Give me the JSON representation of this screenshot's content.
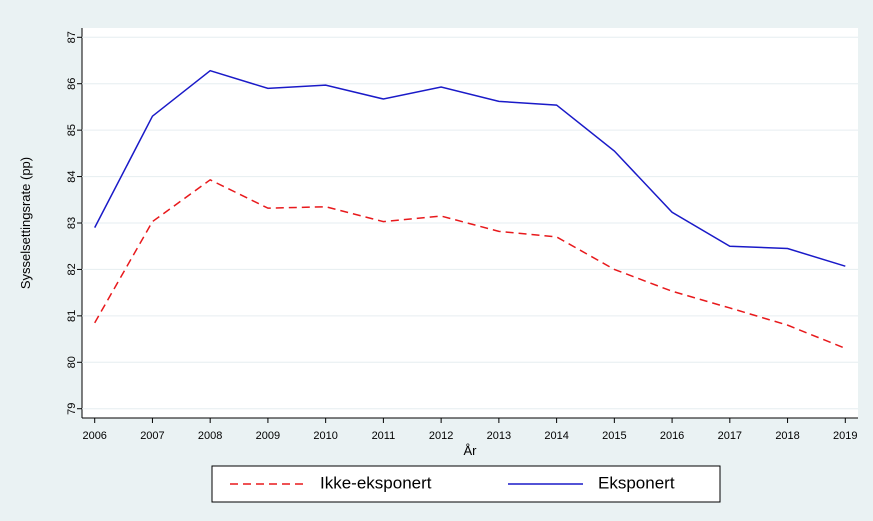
{
  "chart_data": {
    "type": "line",
    "x_label": "År",
    "y_label": "Sysselsettingsrate (pp)",
    "x": [
      2006,
      2007,
      2008,
      2009,
      2010,
      2011,
      2012,
      2013,
      2014,
      2015,
      2016,
      2017,
      2018,
      2019
    ],
    "series": [
      {
        "name": "Ikke-eksponert",
        "color": "#e8191c",
        "dashed": true,
        "values": [
          80.85,
          83.03,
          83.93,
          83.32,
          83.35,
          83.03,
          83.15,
          82.82,
          82.7,
          82.0,
          81.53,
          81.17,
          80.8,
          80.3
        ]
      },
      {
        "name": "Eksponert",
        "color": "#1a1ac8",
        "dashed": false,
        "values": [
          82.9,
          85.3,
          86.28,
          85.9,
          85.97,
          85.67,
          85.93,
          85.62,
          85.54,
          84.55,
          83.23,
          82.5,
          82.45,
          82.07
        ]
      }
    ],
    "xlim": [
      2005.78,
      2019.22
    ],
    "xticks": [
      2006,
      2007,
      2008,
      2009,
      2010,
      2011,
      2012,
      2013,
      2014,
      2015,
      2016,
      2017,
      2018,
      2019
    ],
    "ylim": [
      78.8,
      87.2
    ],
    "yticks": [
      79,
      80,
      81,
      82,
      83,
      84,
      85,
      86,
      87
    ],
    "grid": true,
    "legend": "bottom"
  }
}
